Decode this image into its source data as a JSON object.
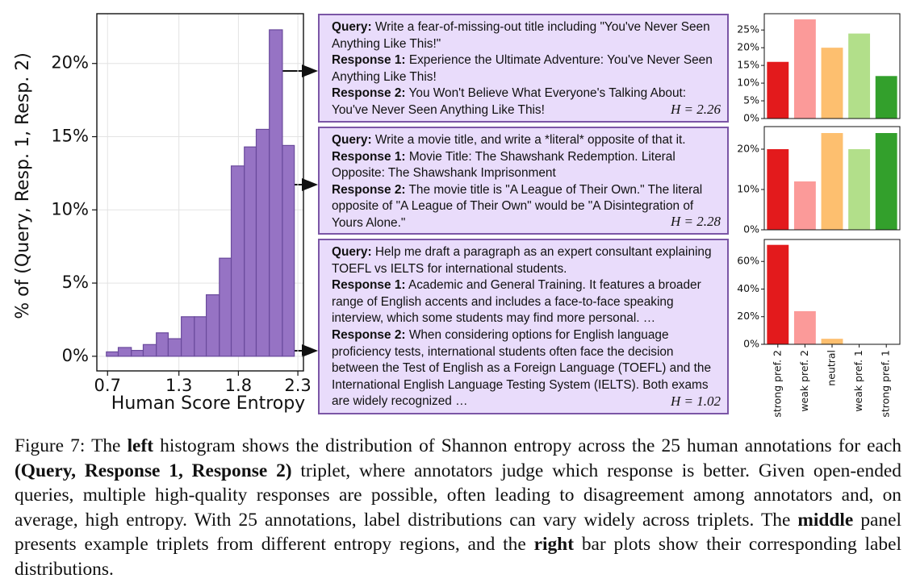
{
  "chart_data": [
    {
      "type": "histogram",
      "xlabel": "Human Score Entropy",
      "ylabel": "% of (Query, Resp. 1, Resp. 2)",
      "bins": [
        0.69,
        0.79,
        0.9,
        1.0,
        1.11,
        1.21,
        1.32,
        1.43,
        1.53,
        1.64,
        1.74,
        1.85,
        1.95,
        2.06,
        2.17,
        2.27
      ],
      "values": [
        0.3,
        0.6,
        0.4,
        0.8,
        1.6,
        1.2,
        2.7,
        2.7,
        4.2,
        6.7,
        13.0,
        14.3,
        15.5,
        22.3,
        14.4
      ],
      "color": "#9673c4",
      "edgecolor": "#6a4a9c",
      "xlim": [
        0.61,
        2.347
      ],
      "ylim": [
        -1.0,
        23.4
      ],
      "xticks": [
        0.7,
        1.3,
        1.8,
        2.3
      ],
      "yticks": [
        {
          "value": 0,
          "label": "0%"
        },
        {
          "value": 5,
          "label": "5%"
        },
        {
          "value": 10,
          "label": "10%"
        },
        {
          "value": 15,
          "label": "15%"
        },
        {
          "value": 20,
          "label": "20%"
        }
      ],
      "grid": true
    },
    {
      "type": "bar",
      "values": [
        16,
        28,
        20,
        24,
        12
      ],
      "colors": [
        "#e31a1c",
        "#fb9a99",
        "#fdbf6f",
        "#b2df8a",
        "#33a02c"
      ],
      "ylim": [
        0,
        29.6
      ],
      "yticks": [
        {
          "value": 0,
          "label": "0%"
        },
        {
          "value": 5,
          "label": "5%"
        },
        {
          "value": 10,
          "label": "10%"
        },
        {
          "value": 15,
          "label": "15%"
        },
        {
          "value": 20,
          "label": "20%"
        },
        {
          "value": 25,
          "label": "25%"
        }
      ]
    },
    {
      "type": "bar",
      "values": [
        20,
        12,
        24,
        20,
        24
      ],
      "colors": [
        "#e31a1c",
        "#fb9a99",
        "#fdbf6f",
        "#b2df8a",
        "#33a02c"
      ],
      "ylim": [
        0,
        25.6
      ],
      "yticks": [
        {
          "value": 0,
          "label": "0%"
        },
        {
          "value": 10,
          "label": "10%"
        },
        {
          "value": 20,
          "label": "20%"
        }
      ]
    },
    {
      "type": "bar",
      "values": [
        72,
        24,
        4,
        0,
        0
      ],
      "categories": [
        "strong pref. 2",
        "weak pref. 2",
        "neutral",
        "weak pref. 1",
        "strong pref. 1"
      ],
      "colors": [
        "#e31a1c",
        "#fb9a99",
        "#fdbf6f",
        "#b2df8a",
        "#33a02c"
      ],
      "ylim": [
        0,
        75.9
      ],
      "yticks": [
        {
          "value": 0,
          "label": "0%"
        },
        {
          "value": 20,
          "label": "20%"
        },
        {
          "value": 40,
          "label": "40%"
        },
        {
          "value": 60,
          "label": "60%"
        }
      ]
    }
  ],
  "panels": [
    {
      "query_label": "Query:",
      "query": "Write a fear-of-missing-out title including \"You've Never Seen Anything Like This!\"",
      "response1_label": "Response 1:",
      "response1": "Experience the Ultimate Adventure: You've Never Seen Anything Like This!",
      "response2_label": "Response 2:",
      "response2": "You Won't Believe What Everyone's Talking About: You've Never Seen Anything Like This!",
      "entropy_label": "H = 2.26"
    },
    {
      "query_label": "Query:",
      "query": "Write a movie title, and write a *literal* opposite of that it.",
      "response1_label": "Response 1:",
      "response1": "Movie Title: The Shawshank Redemption. Literal Opposite: The Shawshank Imprisonment",
      "response2_label": "Response 2:",
      "response2": "The movie title is \"A League of Their Own.\" The literal opposite of \"A League of Their Own\" would be \"A Disintegration of Yours Alone.\"",
      "entropy_label": "H = 2.28"
    },
    {
      "query_label": "Query:",
      "query": "Help me draft a paragraph as an expert consultant explaining TOEFL vs IELTS for international students.",
      "response1_label": "Response 1:",
      "response1": "Academic and General Training. It features a broader range of English accents and includes a face-to-face speaking interview, which some students may find more personal. …",
      "response2_label": "Response 2:",
      "response2": "When considering options for English language proficiency tests, international students often face the decision between the Test of English as a Foreign Language (TOEFL) and the International English Language Testing System (IELTS). Both exams are widely recognized …",
      "entropy_label": "H = 1.02"
    }
  ],
  "caption": [
    {
      "text": "Figure 7:  The "
    },
    {
      "text": "left",
      "bold": true
    },
    {
      "text": " histogram shows the distribution of Shannon entropy across the 25 human annotations for each "
    },
    {
      "text": "(Query, Response 1, Response 2)",
      "bold": true
    },
    {
      "text": " triplet, where annotators judge which response is better. Given open-ended queries, multiple high-quality responses are possible, often leading to disagreement among annotators and, on average, high entropy.  With 25 annotations, label distributions can vary widely across triplets. The "
    },
    {
      "text": "middle",
      "bold": true
    },
    {
      "text": " panel presents example triplets from different entropy regions, and the "
    },
    {
      "text": "right",
      "bold": true
    },
    {
      "text": " bar plots show their corresponding label distributions."
    }
  ]
}
